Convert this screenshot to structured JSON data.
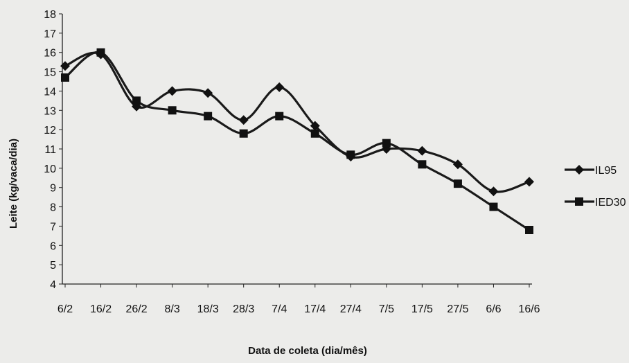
{
  "chart_data": {
    "type": "line",
    "title": "",
    "xlabel": "Data de coleta (dia/mês)",
    "ylabel": "Leite (kg/vaca/dia)",
    "ylim": [
      4,
      18
    ],
    "yticks": [
      4,
      5,
      6,
      7,
      8,
      9,
      10,
      11,
      12,
      13,
      14,
      15,
      16,
      17,
      18
    ],
    "grid": false,
    "legend_position": "right",
    "categories": [
      "6/2",
      "16/2",
      "26/2",
      "8/3",
      "18/3",
      "28/3",
      "7/4",
      "17/4",
      "27/4",
      "7/5",
      "17/5",
      "27/5",
      "6/6",
      "16/6"
    ],
    "series": [
      {
        "name": "IL95",
        "marker": "diamond",
        "color": "#1a1a1a",
        "values": [
          15.3,
          15.9,
          13.2,
          14.0,
          13.9,
          12.5,
          14.2,
          12.2,
          10.6,
          11.0,
          10.9,
          10.2,
          8.8,
          9.3
        ]
      },
      {
        "name": "IED30",
        "marker": "square",
        "color": "#1a1a1a",
        "values": [
          14.7,
          16.0,
          13.5,
          13.0,
          12.7,
          11.8,
          12.7,
          11.8,
          10.7,
          11.3,
          10.2,
          9.2,
          8.0,
          6.8
        ]
      }
    ]
  }
}
